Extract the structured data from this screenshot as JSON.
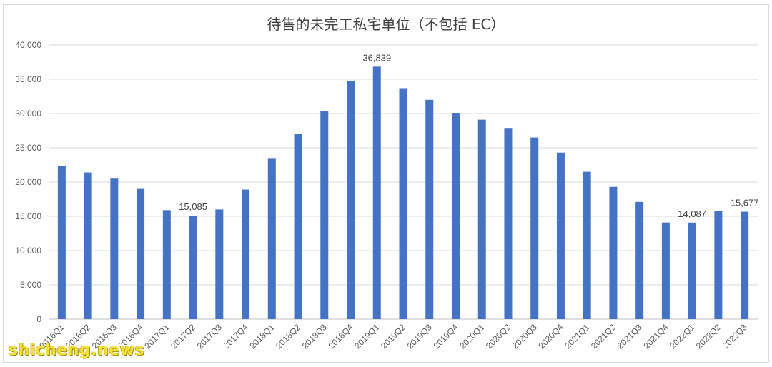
{
  "chart_data": {
    "type": "bar",
    "title": "待售的未完工私宅单位（不包括 EC）",
    "xlabel": "",
    "ylabel": "",
    "ylim": [
      0,
      40000
    ],
    "yticks": [
      "0",
      "5,000",
      "10,000",
      "15,000",
      "20,000",
      "25,000",
      "30,000",
      "35,000",
      "40,000"
    ],
    "categories": [
      "2016Q1",
      "2016Q2",
      "2016Q3",
      "2016Q4",
      "2017Q1",
      "2017Q2",
      "2017Q3",
      "2017Q4",
      "2018Q1",
      "2018Q2",
      "2018Q3",
      "2018Q4",
      "2019Q1",
      "2019Q2",
      "2019Q3",
      "2019Q4",
      "2020Q1",
      "2020Q2",
      "2020Q3",
      "2020Q4",
      "2021Q1",
      "2021Q2",
      "2021Q3",
      "2021Q4",
      "2022Q1",
      "2022Q2",
      "2022Q3"
    ],
    "values": [
      22300,
      21400,
      20600,
      19000,
      15900,
      15085,
      16000,
      18900,
      23500,
      27000,
      30400,
      34800,
      36839,
      33700,
      32000,
      30100,
      29100,
      27900,
      26500,
      24300,
      21500,
      19300,
      17100,
      14100,
      14087,
      15800,
      15677
    ],
    "data_labels": [
      {
        "index": 5,
        "text": "15,085"
      },
      {
        "index": 12,
        "text": "36,839"
      },
      {
        "index": 24,
        "text": "14,087"
      },
      {
        "index": 26,
        "text": "15,677"
      }
    ],
    "bar_color": "#4472c4",
    "grid": true,
    "legend": "none"
  },
  "watermark": "shicheng.news"
}
